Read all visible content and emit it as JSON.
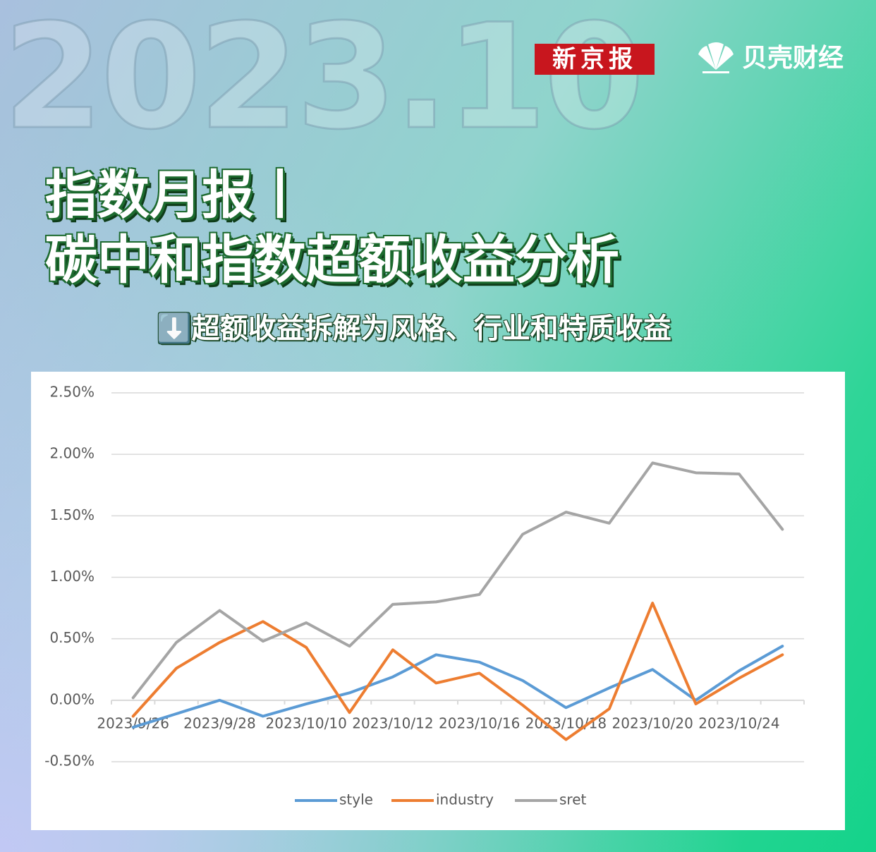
{
  "header": {
    "year": "2023.10",
    "logo_left": "新京报",
    "logo_right": "贝壳财经",
    "title_line1": "指数月报丨",
    "title_line2": "碳中和指数超额收益分析",
    "subtitle": "⬇️超额收益拆解为风格、行业和特质收益"
  },
  "chart_data": {
    "type": "line",
    "categories": [
      "2023/9/26",
      null,
      "2023/9/28",
      null,
      "2023/10/10",
      null,
      "2023/10/12",
      null,
      "2023/10/16",
      null,
      "2023/10/18",
      null,
      "2023/10/20",
      null,
      "2023/10/24",
      null
    ],
    "series": [
      {
        "name": "style",
        "color": "#5b9bd5",
        "values": [
          -0.22,
          -0.11,
          0.0,
          -0.13,
          -0.03,
          0.06,
          0.19,
          0.37,
          0.31,
          0.16,
          -0.06,
          0.1,
          0.25,
          0.0,
          0.24,
          0.44
        ]
      },
      {
        "name": "industry",
        "color": "#ed7d31",
        "values": [
          -0.13,
          0.26,
          0.47,
          0.64,
          0.43,
          -0.1,
          0.41,
          0.14,
          0.22,
          -0.04,
          -0.32,
          -0.07,
          0.79,
          -0.03,
          0.18,
          0.37
        ]
      },
      {
        "name": "sret",
        "color": "#a5a5a5",
        "values": [
          0.02,
          0.47,
          0.73,
          0.48,
          0.63,
          0.44,
          0.78,
          0.8,
          0.86,
          1.35,
          1.53,
          1.44,
          1.93,
          1.85,
          1.84,
          1.39
        ]
      }
    ],
    "ylim": [
      -0.5,
      2.5
    ],
    "yticks": [
      {
        "value": -0.5,
        "label": "-0.50%"
      },
      {
        "value": 0,
        "label": "0.00%"
      },
      {
        "value": 0.5,
        "label": "0.50%"
      },
      {
        "value": 1,
        "label": "1.00%"
      },
      {
        "value": 1.5,
        "label": "1.50%"
      },
      {
        "value": 2,
        "label": "2.00%"
      },
      {
        "value": 2.5,
        "label": "2.50%"
      }
    ],
    "grid": true,
    "legend": "bottom"
  }
}
